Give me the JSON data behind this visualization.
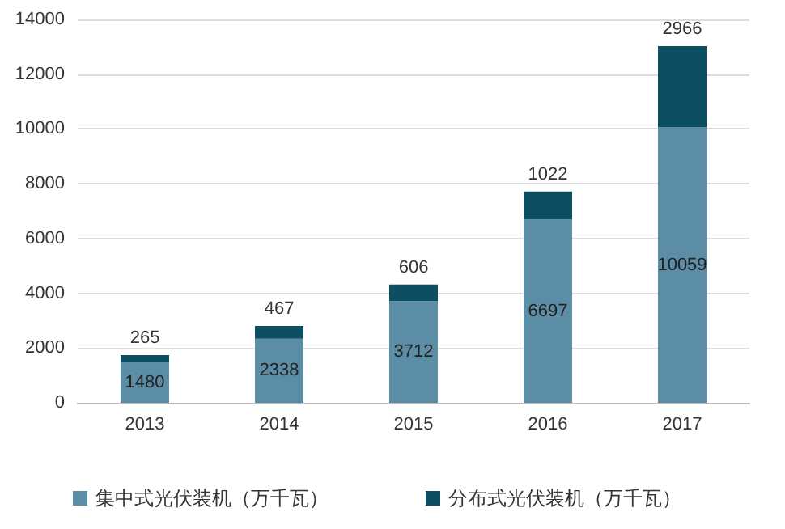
{
  "chart_data": {
    "type": "bar",
    "stacked": true,
    "categories": [
      "2013",
      "2014",
      "2015",
      "2016",
      "2017"
    ],
    "series": [
      {
        "name": "集中式光伏装机（万千瓦）",
        "color": "#5b8ea6",
        "values": [
          1480,
          2338,
          3712,
          6697,
          10059
        ]
      },
      {
        "name": "分布式光伏装机（万千瓦）",
        "color": "#0d4f62",
        "values": [
          265,
          467,
          606,
          1022,
          2966
        ]
      }
    ],
    "data_labels": true,
    "ylim": [
      0,
      14000
    ],
    "yticks": [
      0,
      2000,
      4000,
      6000,
      8000,
      10000,
      12000,
      14000
    ],
    "grid": "y",
    "legend": "bottom"
  }
}
